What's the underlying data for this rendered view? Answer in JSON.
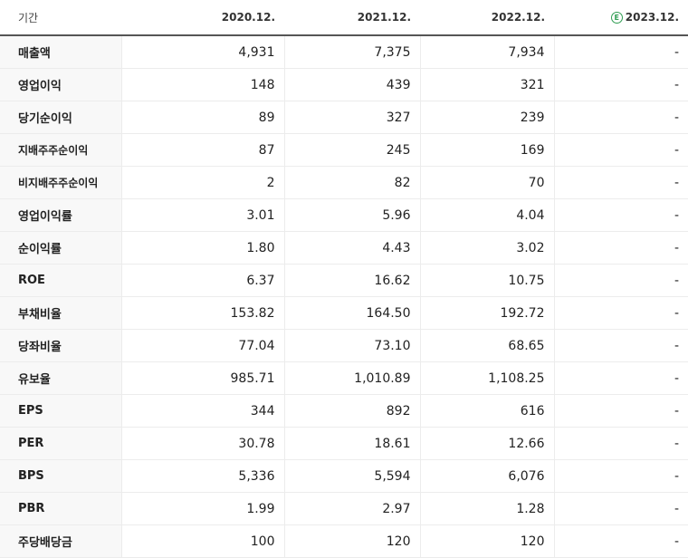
{
  "header": {
    "label": "기간",
    "periods": [
      "2020.12.",
      "2021.12.",
      "2022.12.",
      "2023.12."
    ],
    "estimate_badge": "E"
  },
  "rows": [
    {
      "label": "매출액",
      "values": [
        "4,931",
        "7,375",
        "7,934",
        "-"
      ]
    },
    {
      "label": "영업이익",
      "values": [
        "148",
        "439",
        "321",
        "-"
      ]
    },
    {
      "label": "당기순이익",
      "values": [
        "89",
        "327",
        "239",
        "-"
      ]
    },
    {
      "label": "지배주주순이익",
      "values": [
        "87",
        "245",
        "169",
        "-"
      ]
    },
    {
      "label": "비지배주주순이익",
      "values": [
        "2",
        "82",
        "70",
        "-"
      ]
    },
    {
      "label": "영업이익률",
      "values": [
        "3.01",
        "5.96",
        "4.04",
        "-"
      ]
    },
    {
      "label": "순이익률",
      "values": [
        "1.80",
        "4.43",
        "3.02",
        "-"
      ]
    },
    {
      "label": "ROE",
      "values": [
        "6.37",
        "16.62",
        "10.75",
        "-"
      ]
    },
    {
      "label": "부채비율",
      "values": [
        "153.82",
        "164.50",
        "192.72",
        "-"
      ]
    },
    {
      "label": "당좌비율",
      "values": [
        "77.04",
        "73.10",
        "68.65",
        "-"
      ]
    },
    {
      "label": "유보율",
      "values": [
        "985.71",
        "1,010.89",
        "1,108.25",
        "-"
      ]
    },
    {
      "label": "EPS",
      "values": [
        "344",
        "892",
        "616",
        "-"
      ]
    },
    {
      "label": "PER",
      "values": [
        "30.78",
        "18.61",
        "12.66",
        "-"
      ]
    },
    {
      "label": "BPS",
      "values": [
        "5,336",
        "5,594",
        "6,076",
        "-"
      ]
    },
    {
      "label": "PBR",
      "values": [
        "1.99",
        "2.97",
        "1.28",
        "-"
      ]
    },
    {
      "label": "주당배당금",
      "values": [
        "100",
        "120",
        "120",
        "-"
      ]
    }
  ]
}
